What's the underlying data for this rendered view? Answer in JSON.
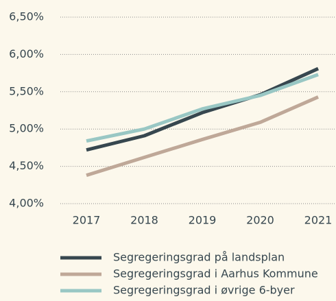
{
  "chart_data": {
    "type": "line",
    "categories": [
      "2017",
      "2018",
      "2019",
      "2020",
      "2021"
    ],
    "series": [
      {
        "name": "Segregeringsgrad på landsplan",
        "color": "#37474f",
        "values": [
          4.72,
          4.91,
          5.22,
          5.46,
          5.81
        ]
      },
      {
        "name": "Segregeringsgrad i Aarhus Kommune",
        "color": "#bfa898",
        "values": [
          4.38,
          4.62,
          4.86,
          5.09,
          5.43
        ]
      },
      {
        "name": "Segregeringsgrad i øvrige 6-byer",
        "color": "#99c7c4",
        "values": [
          4.84,
          5.0,
          5.27,
          5.45,
          5.73
        ]
      }
    ],
    "ylim": [
      4,
      6.5
    ],
    "yticks": [
      {
        "value": 4,
        "label": "4,00%"
      },
      {
        "value": 4.5,
        "label": "4,50%"
      },
      {
        "value": 5,
        "label": "5,00%"
      },
      {
        "value": 5.5,
        "label": "5,50%"
      },
      {
        "value": 6,
        "label": "6,00%"
      },
      {
        "value": 6.5,
        "label": "6,50%"
      }
    ],
    "grid": true,
    "legend": "bottom"
  }
}
